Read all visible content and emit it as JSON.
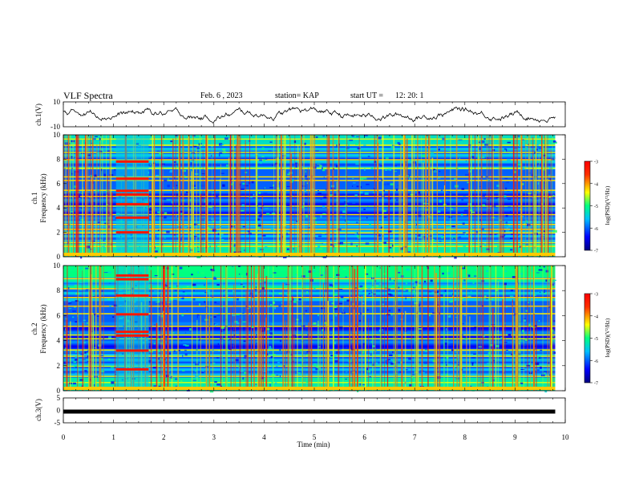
{
  "header": {
    "title": "VLF Spectra",
    "date": "Feb. 6 , 2023",
    "station": "station= KAP",
    "start_ut": "start UT =",
    "start_time": "12: 20: 1"
  },
  "chart_data": [
    {
      "type": "line",
      "name": "ch1-voltage",
      "ylabel": "ch.1(V)",
      "ylim": [
        -10,
        10
      ],
      "yticks": [
        "10",
        "-10"
      ],
      "xlim": [
        0,
        10
      ],
      "color": "#000000"
    },
    {
      "type": "heatmap",
      "name": "ch1-spectrogram",
      "ylabel_line1": "ch.1",
      "ylabel_line2": "Frequency (kHz)",
      "ylim": [
        0,
        10
      ],
      "yticks": [
        "0",
        "2",
        "4",
        "6",
        "8",
        "10"
      ],
      "xlim": [
        0,
        10
      ],
      "data_xrange": [
        0,
        9.8
      ],
      "colorbar": {
        "label": "log(PSD)(V²/Hz)",
        "range": [
          -7,
          -3
        ],
        "ticks": [
          "-3",
          "-4",
          "-5",
          "-6",
          "-7"
        ],
        "colors": [
          "#00007f",
          "#0000ff",
          "#00bfff",
          "#00ff80",
          "#ffff00",
          "#ff3000",
          "#ff0000"
        ]
      },
      "events": [
        {
          "t_start": 1.05,
          "t_end": 1.7,
          "label": ""
        }
      ]
    },
    {
      "type": "heatmap",
      "name": "ch2-spectrogram",
      "ylabel_line1": "ch.2",
      "ylabel_line2": "Frequency (kHz)",
      "ylim": [
        0,
        10
      ],
      "yticks": [
        "0",
        "2",
        "4",
        "6",
        "8",
        "10"
      ],
      "xlim": [
        0,
        10
      ],
      "data_xrange": [
        0,
        9.8
      ],
      "colorbar": {
        "label": "log(PSD)(V²/Hz)",
        "range": [
          -7,
          -3
        ],
        "ticks": [
          "-3",
          "-4",
          "-5",
          "-6",
          "-7"
        ],
        "colors": [
          "#00007f",
          "#0000ff",
          "#00bfff",
          "#00ff80",
          "#ffff00",
          "#ff3000",
          "#ff0000"
        ]
      }
    },
    {
      "type": "line",
      "name": "ch3-voltage",
      "ylabel": "ch.3(V)",
      "ylim": [
        -5,
        5
      ],
      "yticks": [
        "5",
        "0",
        "-5"
      ],
      "xlim": [
        0,
        10
      ],
      "constant_value": -0.5,
      "data_xrange": [
        0,
        9.8
      ],
      "color": "#000000",
      "xlabel": "Time (min)",
      "xticks": [
        "0",
        "1",
        "2",
        "3",
        "4",
        "5",
        "6",
        "7",
        "8",
        "9",
        "10"
      ]
    }
  ]
}
